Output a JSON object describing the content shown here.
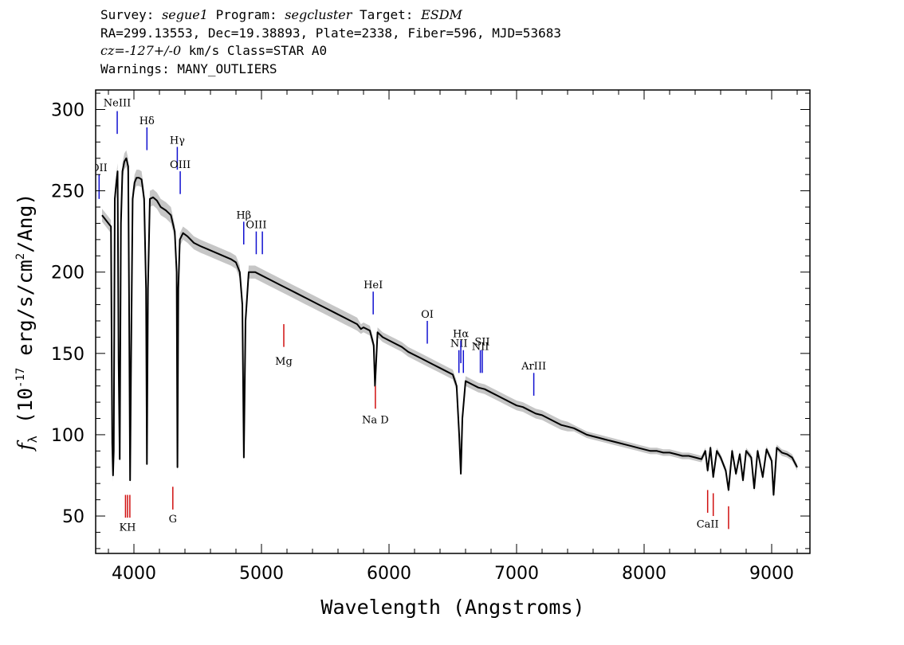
{
  "header": {
    "survey_label": "Survey:",
    "survey": "segue1",
    "program_label": "Program:",
    "program": "segcluster",
    "target_label": "Target:",
    "target": "ESDM",
    "line2": "RA=299.13553, Dec=19.38893, Plate=2338, Fiber=596, MJD=53683",
    "cz": "cz=-127+/-0",
    "line3_rest": "km/s Class=STAR A0",
    "line4": "Warnings: MANY_OUTLIERS"
  },
  "colors": {
    "emission": "#1010d0",
    "absorption": "#d01010",
    "spectrum": "#000000",
    "error_band": "#a0a0a0"
  },
  "chart_data": {
    "type": "line",
    "title": "",
    "xlabel": "Wavelength (Angstroms)",
    "ylabel": "f_λ (10^-17 erg/s/cm^2/Ang)",
    "xlim": [
      3700,
      9300
    ],
    "ylim": [
      27,
      312
    ],
    "xticks": [
      4000,
      5000,
      6000,
      7000,
      8000,
      9000
    ],
    "yticks": [
      50,
      100,
      150,
      200,
      250,
      300
    ],
    "series": [
      {
        "x": [
          3750,
          3800,
          3820,
          3830,
          3836,
          3842,
          3850,
          3862,
          3872,
          3880,
          3889,
          3898,
          3910,
          3925,
          3940,
          3955,
          3962,
          3970,
          3978,
          3990,
          4005,
          4020,
          4040,
          4060,
          4080,
          4095,
          4102,
          4110,
          4125,
          4150,
          4180,
          4210,
          4250,
          4290,
          4320,
          4335,
          4341,
          4348,
          4360,
          4385,
          4420,
          4470,
          4520,
          4580,
          4640,
          4700,
          4760,
          4800,
          4830,
          4850,
          4862,
          4875,
          4900,
          4950,
          5000,
          5050,
          5100,
          5150,
          5200,
          5250,
          5300,
          5350,
          5400,
          5450,
          5500,
          5550,
          5600,
          5650,
          5700,
          5750,
          5780,
          5800,
          5850,
          5880,
          5890,
          5896,
          5910,
          5950,
          6000,
          6050,
          6100,
          6150,
          6200,
          6250,
          6300,
          6350,
          6400,
          6450,
          6500,
          6530,
          6550,
          6563,
          6575,
          6600,
          6650,
          6700,
          6750,
          6800,
          6850,
          6900,
          6950,
          7000,
          7050,
          7100,
          7150,
          7200,
          7250,
          7300,
          7350,
          7400,
          7450,
          7500,
          7550,
          7600,
          7650,
          7700,
          7750,
          7800,
          7850,
          7900,
          7950,
          8000,
          8050,
          8100,
          8150,
          8200,
          8250,
          8300,
          8350,
          8400,
          8450,
          8480,
          8498,
          8520,
          8542,
          8570,
          8600,
          8640,
          8662,
          8690,
          8720,
          8750,
          8775,
          8800,
          8840,
          8863,
          8890,
          8930,
          8960,
          9000,
          9015,
          9040,
          9080,
          9120,
          9160,
          9200
        ],
        "y": [
          235,
          230,
          228,
          95,
          75,
          90,
          245,
          255,
          262,
          145,
          85,
          230,
          262,
          268,
          270,
          265,
          185,
          72,
          150,
          245,
          255,
          258,
          258,
          257,
          245,
          190,
          82,
          190,
          245,
          246,
          244,
          240,
          238,
          235,
          225,
          200,
          80,
          190,
          220,
          224,
          222,
          218,
          216,
          214,
          212,
          210,
          208,
          206,
          200,
          180,
          86,
          170,
          200,
          200,
          198,
          196,
          194,
          192,
          190,
          188,
          186,
          184,
          182,
          180,
          178,
          176,
          174,
          172,
          170,
          168,
          165,
          166,
          164,
          155,
          130,
          140,
          163,
          160,
          158,
          156,
          154,
          151,
          149,
          147,
          145,
          143,
          141,
          139,
          137,
          130,
          100,
          76,
          110,
          133,
          131,
          129,
          128,
          126,
          124,
          122,
          120,
          118,
          117,
          115,
          113,
          112,
          110,
          108,
          106,
          105,
          104,
          102,
          100,
          99,
          98,
          97,
          96,
          95,
          94,
          93,
          92,
          91,
          90,
          90,
          89,
          89,
          88,
          87,
          87,
          86,
          85,
          90,
          78,
          92,
          74,
          90,
          86,
          78,
          66,
          90,
          76,
          88,
          72,
          90,
          86,
          67,
          90,
          74,
          91,
          84,
          63,
          92,
          89,
          88,
          86,
          80
        ],
        "err": [
          4,
          4,
          4,
          4,
          4,
          4,
          5,
          5,
          5,
          4,
          4,
          5,
          5,
          5,
          5,
          5,
          4,
          4,
          4,
          5,
          5,
          5,
          5,
          5,
          5,
          4,
          4,
          4,
          5,
          5,
          5,
          5,
          5,
          5,
          4,
          4,
          4,
          4,
          4,
          4,
          4,
          4,
          4,
          4,
          4,
          4,
          4,
          4,
          4,
          4,
          3,
          3,
          4,
          4,
          4,
          4,
          4,
          4,
          4,
          4,
          4,
          4,
          4,
          4,
          4,
          4,
          4,
          4,
          4,
          4,
          3,
          3,
          3,
          3,
          3,
          3,
          3,
          3,
          3,
          3,
          3,
          3,
          3,
          3,
          3,
          3,
          3,
          3,
          3,
          3,
          3,
          3,
          3,
          3,
          3,
          3,
          3,
          3,
          3,
          3,
          3,
          3,
          3,
          3,
          3,
          3,
          3,
          3,
          3,
          3,
          2,
          2,
          2,
          2,
          2,
          2,
          2,
          2,
          2,
          2,
          2,
          2,
          2,
          2,
          2,
          2,
          2,
          2,
          2,
          2,
          2,
          2,
          2,
          2,
          2,
          2,
          2,
          2,
          2,
          2,
          2,
          2,
          2,
          2,
          2,
          2,
          2,
          2,
          2,
          2,
          2,
          2,
          2,
          2,
          2,
          2
        ]
      }
    ],
    "emission_lines": [
      {
        "label": "OII",
        "wavelength": 3727,
        "y1": 245,
        "y2": 260,
        "label_y": 262
      },
      {
        "label": "NeIII",
        "wavelength": 3869,
        "y1": 285,
        "y2": 299,
        "label_y": 302
      },
      {
        "label": "Hδ",
        "wavelength": 4102,
        "y1": 275,
        "y2": 289,
        "label_y": 291
      },
      {
        "label": "Hγ",
        "wavelength": 4340,
        "y1": 263,
        "y2": 277,
        "label_y": 279
      },
      {
        "label": "OIII",
        "wavelength": 4363,
        "y1": 248,
        "y2": 262,
        "label_y": 264
      },
      {
        "label": "Hβ",
        "wavelength": 4861,
        "y1": 217,
        "y2": 231,
        "label_y": 233
      },
      {
        "label": "OIII",
        "wavelength": 4959,
        "y1": 211,
        "y2": 225,
        "label_y": 227
      },
      {
        "label": "",
        "wavelength": 5007,
        "y1": 211,
        "y2": 225,
        "label_y": 227
      },
      {
        "label": "HeI",
        "wavelength": 5876,
        "y1": 174,
        "y2": 188,
        "label_y": 190
      },
      {
        "label": "OI",
        "wavelength": 6300,
        "y1": 156,
        "y2": 170,
        "label_y": 172
      },
      {
        "label": "NII",
        "wavelength": 6548,
        "y1": 138,
        "y2": 152,
        "label_y": 154
      },
      {
        "label": "Hα",
        "wavelength": 6563,
        "y1": 144,
        "y2": 158,
        "label_y": 160
      },
      {
        "label": "",
        "wavelength": 6583,
        "y1": 138,
        "y2": 152,
        "label_y": 154
      },
      {
        "label": "NII",
        "wavelength": 6716,
        "y1": 138,
        "y2": 152,
        "label_y": 152
      },
      {
        "label": "SII",
        "wavelength": 6731,
        "y1": 138,
        "y2": 152,
        "label_y": 155
      },
      {
        "label": "ArIII",
        "wavelength": 7135,
        "y1": 124,
        "y2": 138,
        "label_y": 140
      }
    ],
    "absorption_lines": [
      {
        "label": "Mg",
        "wavelength": 5175,
        "y1": 154,
        "y2": 168,
        "label_y": 143
      },
      {
        "label": "Na D",
        "wavelength": 5893,
        "y1": 116,
        "y2": 130,
        "label_y": 107
      },
      {
        "label": "KH",
        "wavelength": 3950,
        "y1": 49,
        "y2": 63,
        "label_y": 41
      },
      {
        "label": "",
        "wavelength": 3934,
        "y1": 49,
        "y2": 63,
        "label_y": 41
      },
      {
        "label": "",
        "wavelength": 3968,
        "y1": 49,
        "y2": 63,
        "label_y": 41
      },
      {
        "label": "G",
        "wavelength": 4305,
        "y1": 54,
        "y2": 68,
        "label_y": 46
      },
      {
        "label": "CaII",
        "wavelength": 8498,
        "y1": 52,
        "y2": 66,
        "label_y": 43
      },
      {
        "label": "",
        "wavelength": 8542,
        "y1": 50,
        "y2": 64,
        "label_y": 43
      },
      {
        "label": "",
        "wavelength": 8662,
        "y1": 42,
        "y2": 56,
        "label_y": 43
      }
    ]
  }
}
